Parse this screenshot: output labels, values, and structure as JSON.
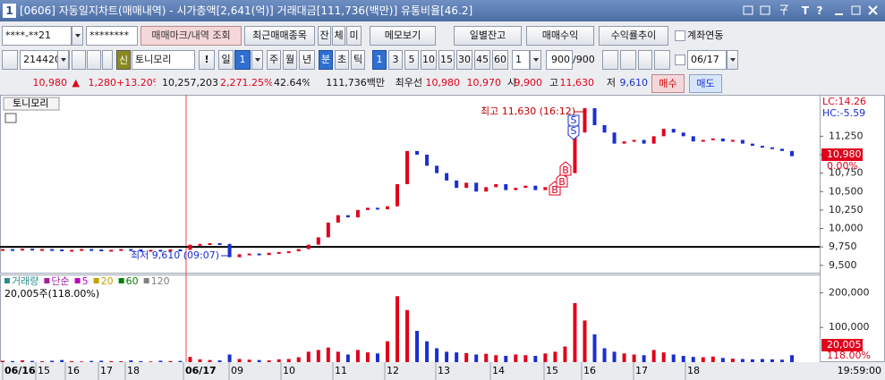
{
  "window": {
    "badge": "1",
    "title": "[0606] 자동일지차트(매매내역) - 시가총액[2,641(억)] 거래대금[111,736(백만)] 유통비율[46.2]",
    "help": [
      "T",
      "?"
    ]
  },
  "toolbar1": {
    "account": "****-**21",
    "password": "********",
    "buttons": [
      "매매마크/내역 조회",
      "최근매매종목",
      "잔",
      "체",
      "미",
      "메모보기",
      "일별잔고",
      "매매수익",
      "수익률추이"
    ],
    "checkbox": "계좌연동"
  },
  "toolbar2": {
    "code": "214420",
    "badge": "신",
    "name": "토니모리",
    "warn": "!",
    "period": "일",
    "period_num": "1",
    "units": [
      "주",
      "월",
      "년",
      "분",
      "초",
      "틱"
    ],
    "minutes": [
      "1",
      "3",
      "5",
      "10",
      "15",
      "30",
      "45",
      "60"
    ],
    "interval": "1",
    "count": "900",
    "count_max": "/900",
    "date": "06/17"
  },
  "quote": {
    "price": "10,980",
    "arrow": "▲",
    "change": "1,280",
    "change_pct": "+13.20%",
    "volume": "10,257,203",
    "volume_pct": "2,271.25%",
    "turnover": "42.64%",
    "amount": "111,736백만",
    "best_label": "최우선",
    "ask": "10,980",
    "bid": "10,970",
    "open_label": "시",
    "open": "9,900",
    "high_label": "고",
    "high": "11,630",
    "low_label": "저",
    "low": "9,610",
    "buy": "매수",
    "sell": "매도"
  },
  "chart_data": {
    "type": "candlestick",
    "panel_label": "토니모리",
    "values": [
      9720,
      9715,
      9725,
      9710,
      9720,
      9715,
      9700,
      9710,
      9720,
      9715,
      9705,
      9710,
      9720,
      9715,
      9700,
      9710,
      9705,
      9715,
      9710,
      9780,
      9790,
      9800,
      9790,
      9610,
      9650,
      9660,
      9640,
      9670,
      9680,
      9690,
      9720,
      9780,
      9880,
      10080,
      10180,
      10150,
      10250,
      10280,
      10260,
      10300,
      10600,
      11050,
      11000,
      10850,
      10750,
      10650,
      10550,
      10620,
      10500,
      10560,
      10600,
      10520,
      10550,
      10580,
      10520,
      10560,
      10620,
      10750,
      11300,
      11630,
      11400,
      11300,
      11150,
      11180,
      11200,
      11150,
      11250,
      11350,
      11300,
      11250,
      11180,
      11200,
      11220,
      11180,
      11200,
      11150,
      11120,
      11100,
      11080,
      11050,
      10980
    ],
    "up_color": "#e0001b",
    "down_color": "#1a2fd0",
    "ylim": [
      9400,
      11800
    ],
    "yticks": [
      {
        "value": 9500,
        "label": "9,500"
      },
      {
        "value": 9750,
        "label": "9,750"
      },
      {
        "value": 10000,
        "label": "10,000"
      },
      {
        "value": 10250,
        "label": "10,250"
      },
      {
        "value": 10500,
        "label": "10,500"
      },
      {
        "value": 10750,
        "label": "10,750"
      },
      {
        "value": 11000,
        "label": "11,000"
      },
      {
        "value": 11250,
        "label": "11,250"
      }
    ],
    "reference_line": 9750,
    "lc": "LC:14.26",
    "hc": "HC:-5.59",
    "last_label": "10,980",
    "last_pct": "0.00%",
    "high_note": "최고 11,630 (16:12)",
    "low_note": "최저 9,610 (09:07)",
    "trade_marks": {
      "sell": [
        "S",
        "S"
      ],
      "buy": [
        "B",
        "B",
        "B"
      ]
    },
    "x_labels": [
      "06/16",
      "15",
      "16",
      "17",
      "18",
      "06/17",
      "09",
      "10",
      "11",
      "12",
      "13",
      "14",
      "15",
      "16",
      "17",
      "18"
    ],
    "time": "19:59:00",
    "volume": {
      "legend": [
        "거래량",
        "단순",
        "5",
        "20",
        "60",
        "120"
      ],
      "legend_colors": [
        "#2e8b8b",
        "#a020a0",
        "#c000c0",
        "#c8a000",
        "#008000",
        "#808080"
      ],
      "info": "20,005주(118.00%)",
      "values": [
        4000,
        3000,
        5000,
        3500,
        2500,
        4000,
        6000,
        3000,
        2000,
        3500,
        4000,
        3000,
        2500,
        5000,
        3000,
        2000,
        4000,
        3000,
        3500,
        15000,
        8000,
        6000,
        5000,
        22000,
        9000,
        7000,
        6000,
        5000,
        8000,
        9000,
        14000,
        30000,
        35000,
        42000,
        30000,
        22000,
        35000,
        28000,
        25000,
        60000,
        190000,
        150000,
        90000,
        60000,
        40000,
        30000,
        28000,
        26000,
        22000,
        24000,
        20000,
        18000,
        22000,
        20000,
        18000,
        25000,
        30000,
        45000,
        170000,
        120000,
        80000,
        40000,
        30000,
        25000,
        22000,
        20000,
        35000,
        28000,
        22000,
        18000,
        15000,
        14000,
        16000,
        12000,
        10000,
        9000,
        8000,
        9000,
        8000,
        7000,
        20005
      ],
      "ylim": [
        0,
        250000
      ],
      "yticks": [
        {
          "value": 100000,
          "label": "100,000"
        },
        {
          "value": 200000,
          "label": "200,000"
        }
      ],
      "last_label": "20,005",
      "last_pct": "118.00%"
    }
  }
}
